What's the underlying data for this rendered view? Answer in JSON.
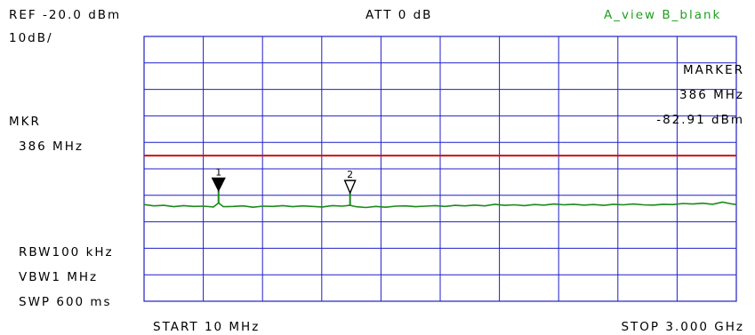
{
  "header": {
    "ref": "REF -20.0 dBm",
    "att": "ATT 0 dB",
    "view": "A_view B_blank",
    "scale": "10dB/"
  },
  "marker_readout": {
    "left_label": "MKR",
    "left_freq": "386 MHz",
    "right_label": "MARKER",
    "right_freq": "386 MHz",
    "right_level": "-82.91 dBm"
  },
  "settings": {
    "rbw": "RBW100 kHz",
    "vbw": "VBW1 MHz",
    "swp": "SWP 600 ms"
  },
  "footer": {
    "start": "START 10 MHz",
    "stop": "STOP 3.000 GHz"
  },
  "markers": [
    {
      "label": "1",
      "freq_mhz": 386,
      "level_dbm": -82.91,
      "style": "filled"
    },
    {
      "label": "2",
      "freq_mhz": 1050,
      "level_dbm": -83.8,
      "style": "hollow"
    }
  ],
  "chart_data": {
    "type": "line",
    "x_unit": "MHz",
    "y_unit": "dBm",
    "xlim": [
      10,
      3000
    ],
    "ylim": [
      -120,
      -20
    ],
    "grid": true,
    "reference_line_dbm": -65,
    "colors": {
      "trace": "#1a8a1a",
      "grid": "#1f1fc8",
      "reference": "#d01010",
      "view_text": "#1fa01f"
    },
    "series": [
      {
        "x": [
          10,
          60,
          110,
          160,
          210,
          260,
          310,
          360,
          386,
          410,
          460,
          510,
          560,
          610,
          660,
          710,
          760,
          810,
          860,
          910,
          960,
          1010,
          1050,
          1080,
          1130,
          1180,
          1230,
          1280,
          1330,
          1380,
          1430,
          1480,
          1530,
          1580,
          1630,
          1680,
          1730,
          1780,
          1830,
          1880,
          1930,
          1980,
          2030,
          2080,
          2130,
          2180,
          2230,
          2280,
          2330,
          2380,
          2430,
          2480,
          2530,
          2580,
          2630,
          2680,
          2730,
          2780,
          2830,
          2880,
          2930,
          2980,
          3000
        ],
        "y": [
          -83.5,
          -84.0,
          -83.8,
          -84.3,
          -83.9,
          -84.2,
          -84.1,
          -84.4,
          -82.9,
          -84.3,
          -84.2,
          -84.0,
          -84.5,
          -84.1,
          -84.2,
          -83.9,
          -84.3,
          -84.0,
          -84.2,
          -84.4,
          -83.9,
          -84.1,
          -83.8,
          -84.3,
          -84.6,
          -84.2,
          -84.5,
          -84.1,
          -84.0,
          -84.3,
          -84.1,
          -83.9,
          -84.2,
          -83.8,
          -84.0,
          -83.7,
          -84.0,
          -83.4,
          -83.8,
          -83.6,
          -83.9,
          -83.5,
          -83.7,
          -83.3,
          -83.6,
          -83.4,
          -83.7,
          -83.5,
          -83.8,
          -83.4,
          -83.6,
          -83.3,
          -83.6,
          -83.7,
          -83.4,
          -83.5,
          -83.1,
          -83.3,
          -83.0,
          -83.4,
          -82.6,
          -83.3,
          -83.5
        ]
      }
    ]
  }
}
